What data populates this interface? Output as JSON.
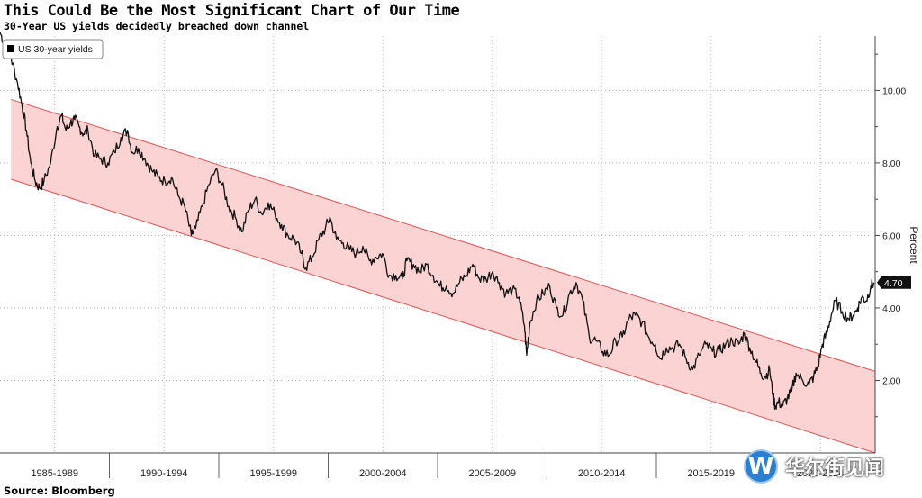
{
  "header": {
    "title": "This Could Be the Most Significant Chart of Our Time",
    "subtitle": "30-Year US yields decidedly breached down channel"
  },
  "footer": {
    "source": "Source: Bloomberg"
  },
  "watermark": {
    "logo_letter": "W",
    "text": "华尔街见闻"
  },
  "colors": {
    "line": "#111111",
    "channel_fill": "#fbd3d3",
    "channel_edge": "#dd5555",
    "grid": "#b8b8b8"
  },
  "chart_data": {
    "type": "line",
    "title": "This Could Be the Most Significant Chart of Our Time",
    "subtitle": "30-Year US yields decidedly breached down channel",
    "ylabel": "Percent",
    "ylim": [
      0,
      11.5
    ],
    "xlim": [
      1985.0,
      2024.8
    ],
    "y_ticks": [
      2,
      4,
      6,
      8,
      10
    ],
    "y_tick_labels": [
      "2.00",
      "4.00",
      "6.00",
      "8.00",
      "10.00"
    ],
    "x_periods": [
      "1985-1989",
      "1990-1994",
      "1995-1999",
      "2000-2004",
      "2005-2009",
      "2010-2014",
      "2015-2019",
      "2020-2024"
    ],
    "grid": true,
    "legend": {
      "position": "top-left",
      "entries": [
        "US 30-year yields"
      ]
    },
    "last_value_label": "4.70",
    "series": [
      {
        "name": "US 30-year yields",
        "x": [
          1985.0,
          1985.2,
          1985.5,
          1985.8,
          1986.0,
          1986.2,
          1986.4,
          1986.6,
          1986.8,
          1987.0,
          1987.3,
          1987.6,
          1987.8,
          1988.0,
          1988.2,
          1988.4,
          1988.6,
          1988.8,
          1989.0,
          1989.3,
          1989.6,
          1989.9,
          1990.2,
          1990.5,
          1990.8,
          1991.0,
          1991.3,
          1991.6,
          1991.9,
          1992.2,
          1992.5,
          1992.8,
          1993.1,
          1993.4,
          1993.7,
          1993.9,
          1994.2,
          1994.5,
          1994.8,
          1995.1,
          1995.4,
          1995.7,
          1996.0,
          1996.3,
          1996.6,
          1996.9,
          1997.2,
          1997.5,
          1997.8,
          1998.1,
          1998.4,
          1998.7,
          1998.9,
          1999.2,
          1999.5,
          1999.8,
          2000.0,
          2000.3,
          2000.6,
          2000.9,
          2001.2,
          2001.5,
          2001.8,
          2002.1,
          2002.4,
          2002.7,
          2003.0,
          2003.3,
          2003.5,
          2003.8,
          2004.1,
          2004.4,
          2004.7,
          2005.0,
          2005.3,
          2005.6,
          2005.9,
          2006.2,
          2006.5,
          2006.8,
          2007.1,
          2007.4,
          2007.7,
          2008.0,
          2008.3,
          2008.6,
          2008.85,
          2008.95,
          2009.1,
          2009.4,
          2009.7,
          2010.0,
          2010.3,
          2010.6,
          2010.9,
          2011.2,
          2011.5,
          2011.8,
          2012.1,
          2012.4,
          2012.7,
          2013.0,
          2013.3,
          2013.6,
          2013.9,
          2014.2,
          2014.5,
          2014.8,
          2015.0,
          2015.3,
          2015.6,
          2015.9,
          2016.2,
          2016.5,
          2016.8,
          2017.1,
          2017.4,
          2017.7,
          2018.0,
          2018.3,
          2018.6,
          2018.85,
          2019.1,
          2019.4,
          2019.6,
          2019.8,
          2020.0,
          2020.15,
          2020.25,
          2020.4,
          2020.6,
          2020.8,
          2021.0,
          2021.2,
          2021.5,
          2021.8,
          2022.0,
          2022.2,
          2022.4,
          2022.6,
          2022.8,
          2023.0,
          2023.3,
          2023.6,
          2023.8,
          2024.0,
          2024.2,
          2024.4,
          2024.6,
          2024.75
        ],
        "values": [
          11.6,
          11.3,
          10.9,
          10.2,
          9.6,
          8.9,
          8.0,
          7.5,
          7.3,
          7.5,
          8.0,
          9.0,
          9.3,
          8.9,
          9.1,
          9.2,
          9.0,
          8.8,
          8.9,
          8.2,
          8.1,
          8.0,
          8.3,
          8.7,
          8.9,
          8.3,
          8.4,
          8.1,
          7.8,
          7.6,
          7.5,
          7.6,
          7.1,
          6.8,
          6.0,
          6.2,
          6.8,
          7.4,
          7.8,
          7.4,
          6.8,
          6.5,
          6.1,
          6.7,
          7.0,
          6.6,
          6.9,
          6.6,
          6.3,
          6.0,
          5.9,
          5.5,
          5.1,
          5.4,
          5.9,
          6.2,
          6.5,
          5.9,
          5.8,
          5.6,
          5.5,
          5.7,
          5.3,
          5.4,
          5.5,
          4.9,
          4.9,
          4.8,
          5.3,
          5.2,
          5.0,
          5.2,
          4.9,
          4.6,
          4.6,
          4.4,
          4.7,
          4.9,
          5.2,
          4.8,
          4.8,
          5.0,
          4.7,
          4.4,
          4.5,
          4.3,
          3.5,
          2.7,
          3.6,
          4.2,
          4.4,
          4.6,
          4.0,
          3.8,
          4.4,
          4.7,
          4.2,
          3.2,
          3.1,
          2.8,
          2.7,
          3.1,
          3.2,
          3.7,
          3.8,
          3.6,
          3.2,
          3.0,
          2.6,
          2.9,
          2.9,
          3.0,
          2.6,
          2.3,
          2.7,
          3.0,
          2.8,
          2.8,
          3.0,
          3.1,
          3.0,
          3.3,
          2.9,
          2.5,
          2.2,
          2.1,
          2.3,
          1.6,
          1.3,
          1.4,
          1.3,
          1.5,
          1.7,
          2.2,
          2.0,
          1.9,
          2.1,
          2.4,
          3.0,
          3.3,
          3.8,
          4.2,
          3.9,
          3.7,
          3.8,
          4.0,
          4.3,
          4.2,
          4.6,
          4.7
        ]
      }
    ],
    "channel": {
      "upper": {
        "x": [
          1985.5,
          2024.8
        ],
        "y": [
          9.75,
          2.25
        ]
      },
      "lower": {
        "x": [
          1985.5,
          2024.8
        ],
        "y": [
          7.55,
          0.0
        ]
      }
    }
  }
}
